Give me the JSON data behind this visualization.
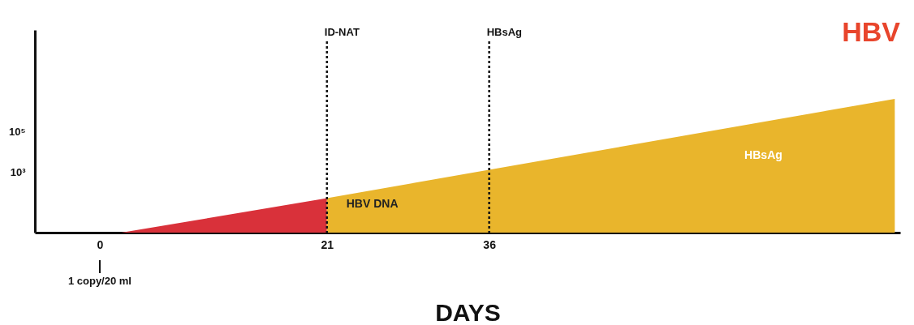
{
  "chart_data": {
    "type": "area",
    "title": "HBV",
    "xlabel": "DAYS",
    "log": "y",
    "grid": false,
    "xlim": [
      -6,
      74
    ],
    "xticks": [
      0,
      21,
      36
    ],
    "ylim": [
      1,
      10000000000
    ],
    "yticks": [
      {
        "value": 1000,
        "label": "10³"
      },
      {
        "value": 100000,
        "label": "10⁵"
      }
    ],
    "series": [
      {
        "color": "#d9313a",
        "x": [
          2,
          21
        ],
        "values": [
          1,
          50
        ]
      },
      {
        "color": "#e9b52c",
        "x": [
          21,
          73.5
        ],
        "values": [
          50,
          4000000
        ]
      }
    ],
    "ref_lines": [
      {
        "axis": "x",
        "value": 21,
        "label": "ID-NAT",
        "line_style": "dotted",
        "color": "#111111"
      },
      {
        "axis": "x",
        "value": 36,
        "label": "HBsAg",
        "line_style": "dotted",
        "color": "#111111"
      }
    ],
    "annotations": [
      "HBV DNA",
      "HBsAg",
      "1 copy/20 ml"
    ]
  }
}
